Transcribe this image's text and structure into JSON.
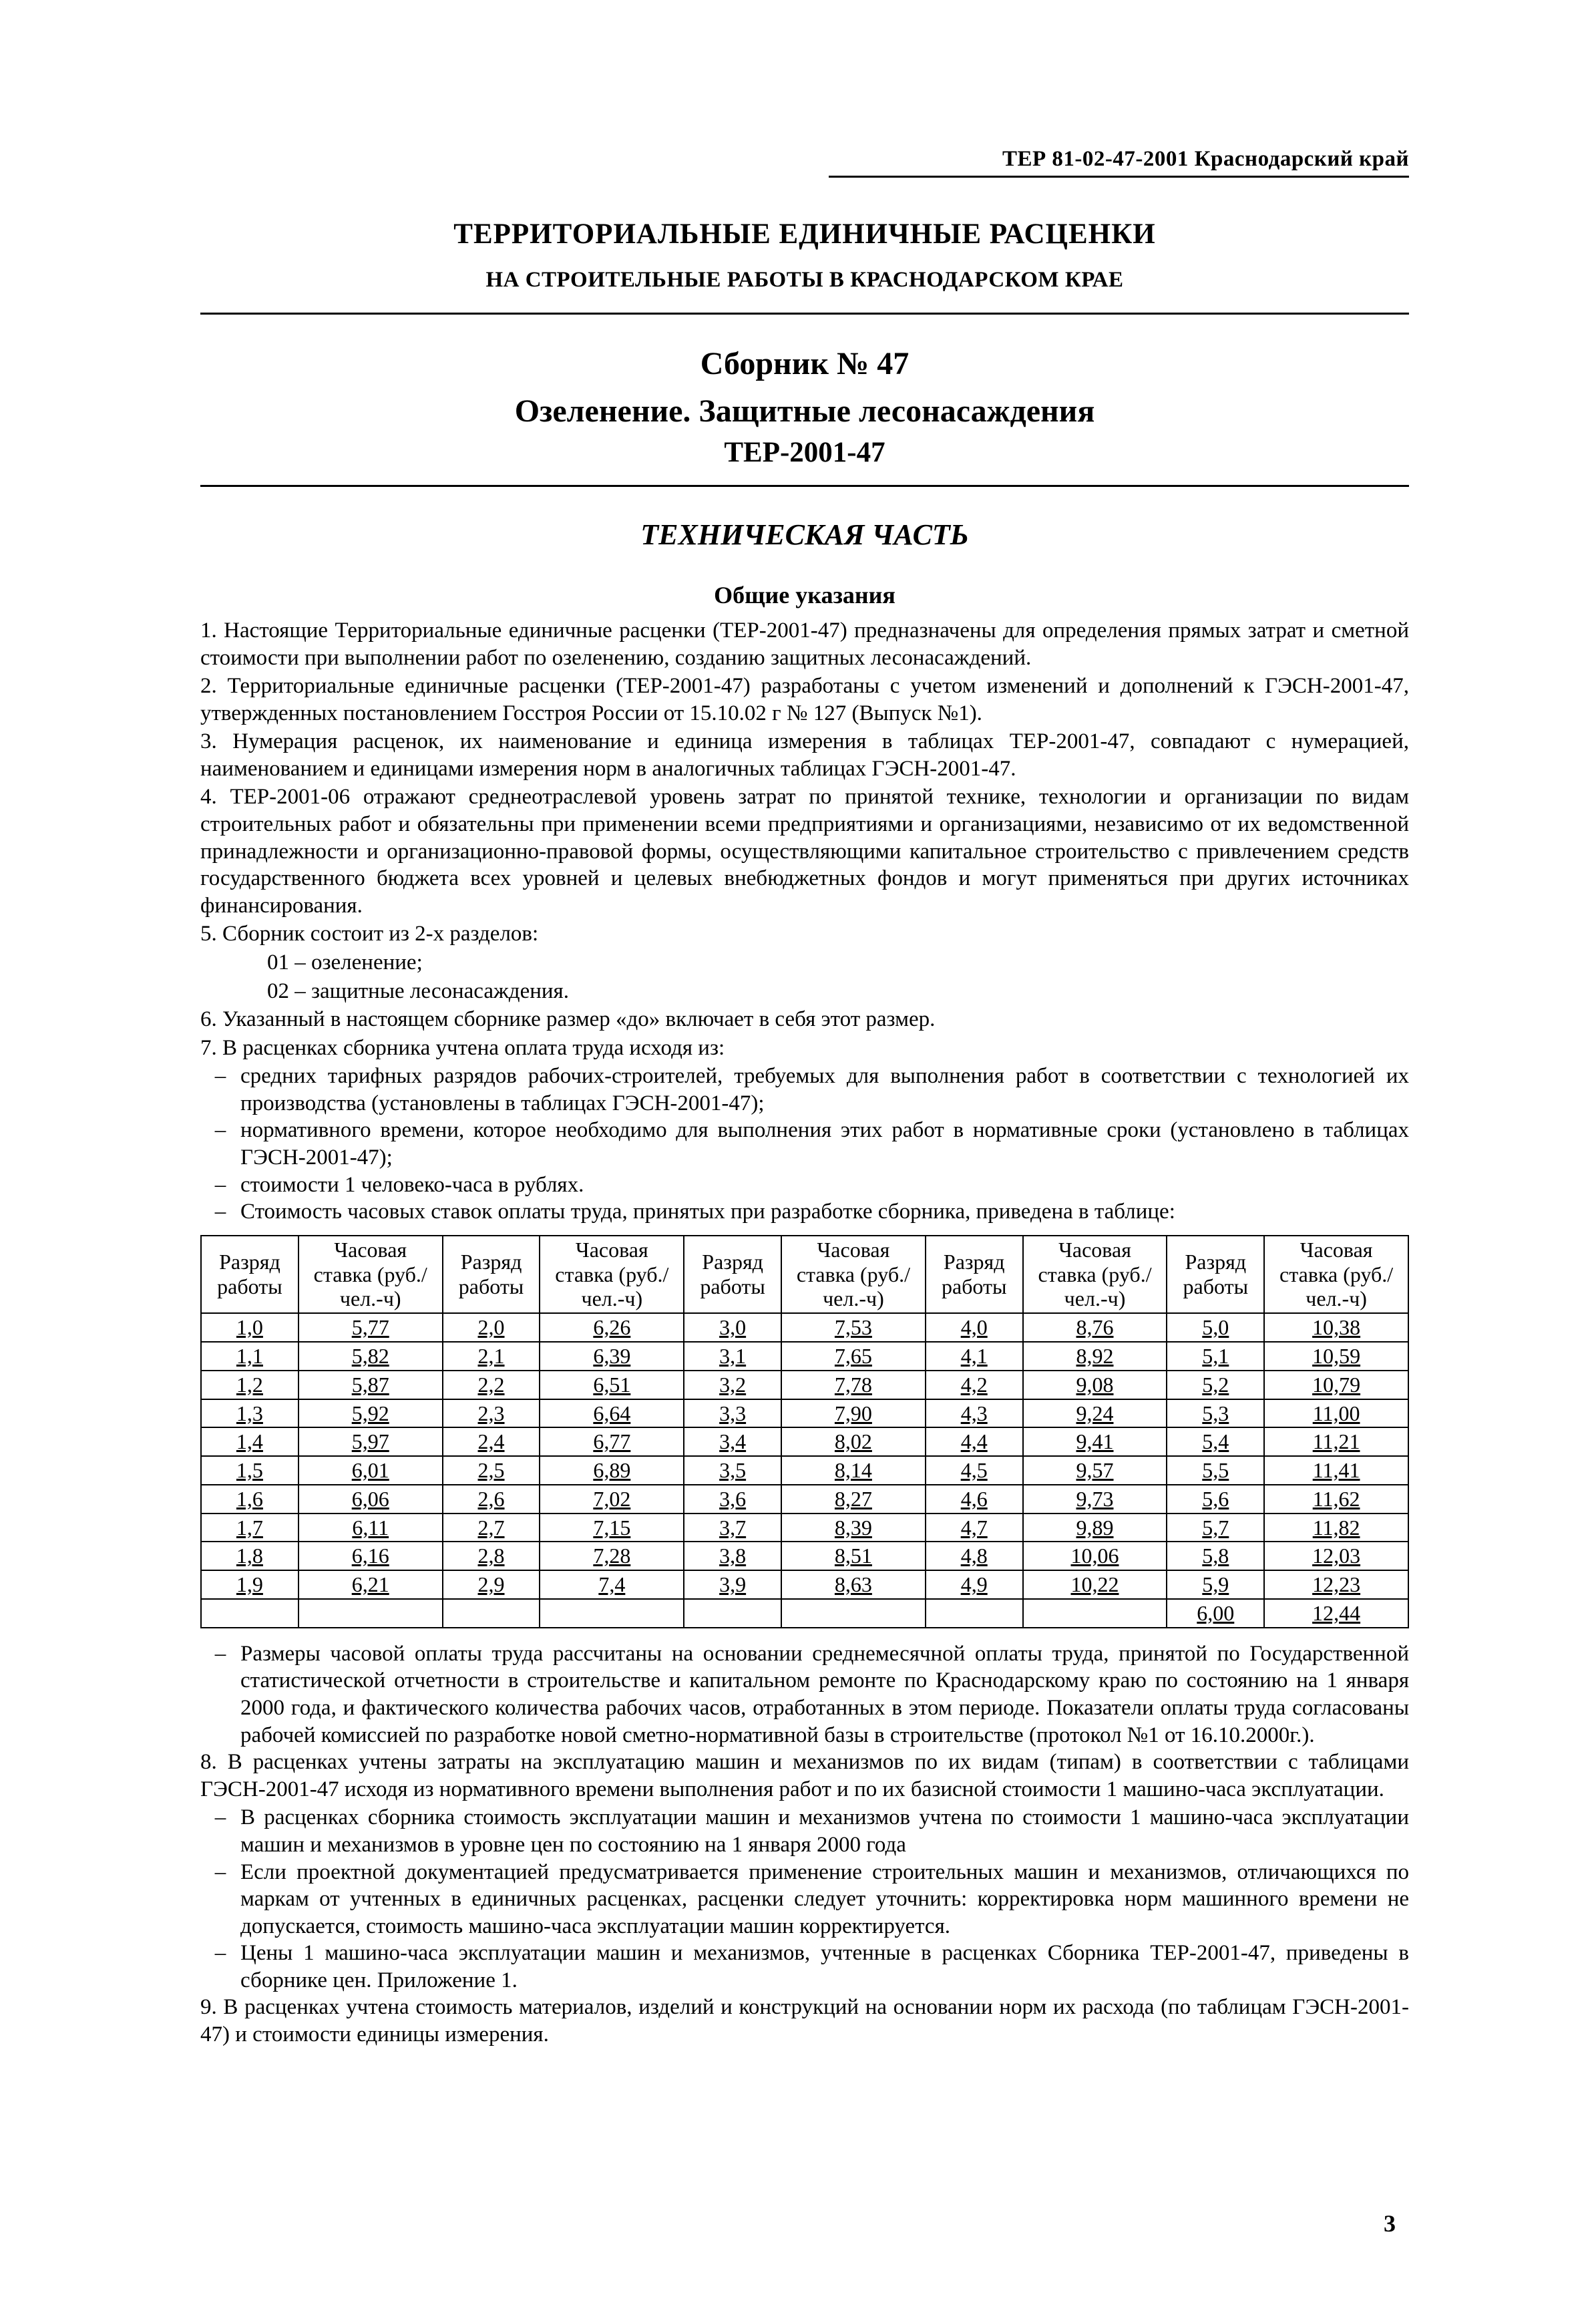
{
  "header_right": "ТЕР 81-02-47-2001   Краснодарский край",
  "title_main": "ТЕРРИТОРИАЛЬНЫЕ ЕДИНИЧНЫЕ РАСЦЕНКИ",
  "title_sub": "НА СТРОИТЕЛЬНЫЕ РАБОТЫ В КРАСНОДАРСКОМ КРАЕ",
  "sbornik_no": "Сборник № 47",
  "sbornik_title": "Озеленение. Защитные лесонасаждения",
  "sbornik_code": "ТЕР-2001-47",
  "tech_part": "ТЕХНИЧЕСКАЯ ЧАСТЬ",
  "general_inst": "Общие указания",
  "p1": "1.   Настоящие Территориальные единичные расценки (ТЕР-2001-47) предназначены для определения прямых затрат и сметной стоимости при выполнении работ по озеленению, созданию защитных лесонасаждений.",
  "p2": "2.   Территориальные единичные расценки (ТЕР-2001-47) разработаны с учетом  изменений и дополнений к ГЭСН-2001-47, утвержденных постановлением Госстроя России  от 15.10.02 г № 127 (Выпуск №1).",
  "p3": "3.   Нумерация расценок, их наименование и единица измерения в таблицах ТЕР-2001-47, совпадают с нумерацией, наименованием и единицами измерения норм в аналогичных таблицах ГЭСН-2001-47.",
  "p4": "4.   ТЕР-2001-06 отражают среднеотраслевой  уровень затрат по принятой технике,  технологии и организации по видам строительных работ и  обязательны при применении всеми предприятиями и организациями, независимо от их ведомственной принадлежности и организационно-правовой формы, осуществляющими капитальное строительство с привлечением средств государственного бюджета всех уровней и целевых внебюджетных фондов и  могут применяться при других источниках финансирования.",
  "p5": "5.   Сборник состоит из 2-х разделов:",
  "p5a": "01 – озеленение;",
  "p5b": "02 – защитные лесонасаждения.",
  "p6": "6.   Указанный в настоящем сборнике размер «до» включает в себя этот размер.",
  "p7": "7.   В расценках сборника учтена оплата труда исходя из:",
  "p7a": "средних тарифных разрядов рабочих-строителей, требуемых для выполнения работ в соответствии с технологией их производства (установлены в таблицах ГЭСН-2001-47);",
  "p7b": "нормативного времени, которое необходимо для выполнения этих работ в нормативные сроки (установлено в таблицах ГЭСН-2001-47);",
  "p7c": "стоимости 1 человеко-часа в рублях.",
  "p7d": "Стоимость часовых ставок оплаты труда, принятых при разработке сборника, приведена в таблице:",
  "table": {
    "col_hdr_1": "Разряд работы",
    "col_hdr_2": "Часовая ставка (руб./чел.-ч)",
    "rows": [
      [
        "1,0",
        "5,77",
        "2,0",
        "6,26",
        "3,0",
        "7,53",
        "4,0",
        "8,76",
        "5,0",
        "10,38"
      ],
      [
        "1,1",
        "5,82",
        "2,1",
        "6,39",
        "3,1",
        "7,65",
        "4,1",
        "8,92",
        "5,1",
        "10,59"
      ],
      [
        "1,2",
        "5,87",
        "2,2",
        "6,51",
        "3,2",
        "7,78",
        "4,2",
        "9,08",
        "5,2",
        "10,79"
      ],
      [
        "1,3",
        "5,92",
        "2,3",
        "6,64",
        "3,3",
        "7,90",
        "4,3",
        "9,24",
        "5,3",
        "11,00"
      ],
      [
        "1,4",
        "5,97",
        "2,4",
        "6,77",
        "3,4",
        "8,02",
        "4,4",
        "9,41",
        "5,4",
        "11,21"
      ],
      [
        "1,5",
        "6,01",
        "2,5",
        "6,89",
        "3,5",
        "8,14",
        "4,5",
        "9,57",
        "5,5",
        "11,41"
      ],
      [
        "1,6",
        "6,06",
        "2,6",
        "7,02",
        "3,6",
        "8,27",
        "4,6",
        "9,73",
        "5,6",
        "11,62"
      ],
      [
        "1,7",
        "6,11",
        "2,7",
        "7,15",
        "3,7",
        "8,39",
        "4,7",
        "9,89",
        "5,7",
        "11,82"
      ],
      [
        "1,8",
        "6,16",
        "2,8",
        "7,28",
        "3,8",
        "8,51",
        "4,8",
        "10,06",
        "5,8",
        "12,03"
      ],
      [
        "1,9",
        "6,21",
        "2,9",
        "7,4",
        "3,9",
        "8,63",
        "4,9",
        "10,22",
        "5,9",
        "12,23"
      ],
      [
        "",
        "",
        "",
        "",
        "",
        "",
        "",
        "",
        "6,00",
        "12,44"
      ]
    ]
  },
  "p_after1": "Размеры часовой оплаты труда рассчитаны на основании среднемесячной оплаты труда, принятой по Государственной статистической отчетности в строительстве и капитальном ремонте по Краснодарскому краю по состоянию на 1 января 2000 года, и фактического количества рабочих часов, отработанных в этом периоде. Показатели оплаты труда согласованы рабочей комиссией по разработке новой сметно-нормативной базы в строительстве (протокол №1 от 16.10.2000г.).",
  "p8": "8.   В расценках учтены затраты на эксплуатацию машин и механизмов по их видам (типам) в соответствии с таблицами ГЭСН-2001-47 исходя из нормативного времени выполнения работ и по их базисной стоимости 1 машино-часа эксплуатации.",
  "p8a": "В расценках сборника стоимость эксплуатации машин и механизмов учтена по стоимости 1 машино-часа эксплуатации машин и механизмов в уровне цен по состоянию на 1 января 2000 года",
  "p8b": "Если проектной документацией предусматривается  применение строительных машин  и механизмов,  отличающихся по маркам от  учтенных в единичных расценках, расценки следует  уточнить: корректировка норм машинного времени не допускается,  стоимость  машино-часа эксплуатации машин  корректируется.",
  "p8c": "Цены 1 машино-часа эксплуатации машин и механизмов, учтенные в расценках Сборника ТЕР-2001-47, приведены в сборнике цен. Приложение 1.",
  "p9": "9.   В расценках учтена стоимость материалов, изделий и конструкций на основании норм их расхода (по таблицам ГЭСН-2001-47) и стоимости единицы измерения.",
  "page_number": "3"
}
